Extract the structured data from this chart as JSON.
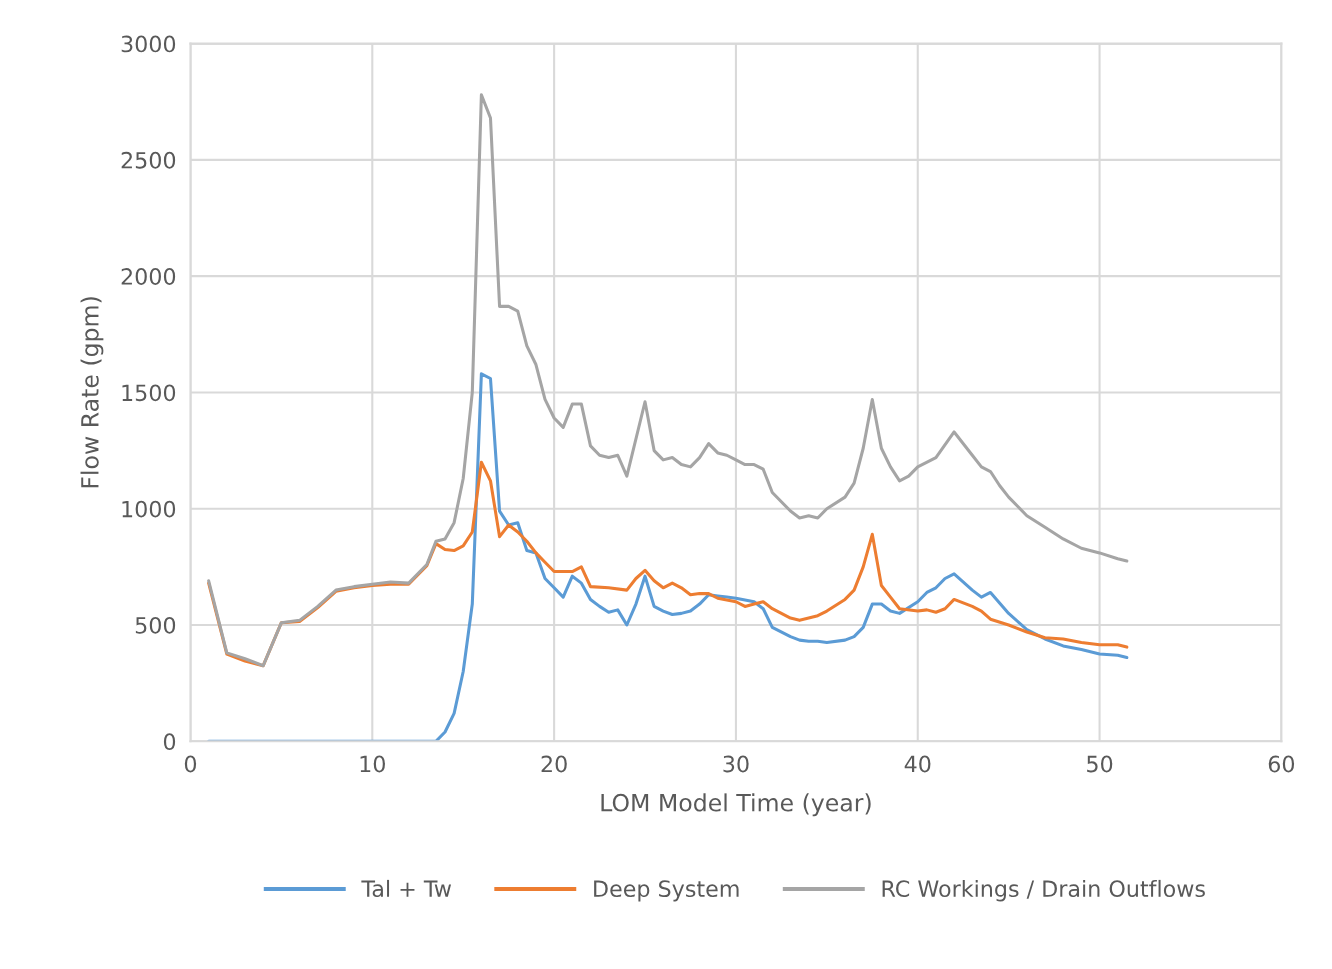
{
  "chart_data": {
    "type": "line",
    "xlabel": "LOM Model Time (year)",
    "ylabel": "Flow Rate (gpm)",
    "xlim": [
      0,
      60
    ],
    "xticks": [
      0,
      10,
      20,
      30,
      40,
      50,
      60
    ],
    "ylim": [
      0,
      3000
    ],
    "yticks": [
      0,
      500,
      1000,
      1500,
      2000,
      2500,
      3000
    ],
    "grid": true,
    "legend": "bottom",
    "marker": "none",
    "line_style": "solid",
    "series": [
      {
        "name": "Tal + Tw",
        "color": "#5b9bd5",
        "x": [
          1,
          13.5,
          14,
          14.5,
          15,
          15.5,
          16,
          16.5,
          17,
          17.5,
          18,
          18.5,
          19,
          19.5,
          20,
          20.5,
          21,
          21.5,
          22,
          22.5,
          23,
          23.5,
          24,
          24.5,
          25,
          25.5,
          26,
          26.5,
          27,
          27.5,
          28,
          28.5,
          29,
          29.5,
          30,
          31,
          31.5,
          32,
          33,
          33.5,
          34,
          34.5,
          35,
          36,
          36.5,
          37,
          37.5,
          38,
          38.5,
          39,
          40,
          40.5,
          41,
          41.5,
          42,
          43,
          43.5,
          44,
          45,
          46,
          47,
          48,
          49,
          50,
          51,
          51.5
        ],
        "values": [
          0,
          0,
          40,
          120,
          300,
          590,
          1580,
          1560,
          990,
          930,
          940,
          820,
          810,
          700,
          660,
          620,
          710,
          680,
          610,
          580,
          555,
          565,
          500,
          590,
          710,
          580,
          560,
          545,
          550,
          560,
          590,
          630,
          625,
          620,
          615,
          600,
          570,
          490,
          450,
          435,
          430,
          430,
          425,
          435,
          450,
          490,
          590,
          590,
          560,
          550,
          600,
          640,
          660,
          700,
          720,
          650,
          620,
          640,
          550,
          480,
          440,
          410,
          395,
          375,
          370,
          360
        ]
      },
      {
        "name": "Deep System",
        "color": "#ed7d31",
        "x": [
          1,
          2,
          3,
          4,
          5,
          6,
          7,
          8,
          9,
          10,
          11,
          12,
          13,
          13.5,
          14,
          14.5,
          15,
          15.5,
          16,
          16.5,
          17,
          17.5,
          18,
          18.5,
          19,
          19.5,
          20,
          21,
          21.5,
          22,
          23,
          24,
          24.5,
          25,
          25.5,
          26,
          26.5,
          27,
          27.5,
          28,
          28.5,
          29,
          30,
          30.5,
          31,
          31.5,
          32,
          33,
          33.5,
          34,
          34.5,
          35,
          36,
          36.5,
          37,
          37.5,
          38,
          38.5,
          39,
          40,
          40.5,
          41,
          41.5,
          42,
          43,
          43.5,
          44,
          45,
          46,
          47,
          48,
          49,
          50,
          51,
          51.5
        ],
        "values": [
          680,
          375,
          345,
          325,
          510,
          515,
          575,
          645,
          660,
          670,
          675,
          675,
          755,
          850,
          825,
          820,
          840,
          900,
          1200,
          1120,
          880,
          930,
          900,
          860,
          810,
          770,
          730,
          730,
          750,
          665,
          660,
          650,
          700,
          735,
          690,
          660,
          680,
          660,
          630,
          635,
          635,
          615,
          600,
          580,
          590,
          600,
          570,
          530,
          520,
          530,
          540,
          560,
          610,
          650,
          750,
          890,
          670,
          620,
          570,
          560,
          565,
          555,
          570,
          610,
          580,
          560,
          525,
          500,
          470,
          445,
          440,
          425,
          415,
          415,
          405
        ]
      },
      {
        "name": "RC Workings / Drain Outflows",
        "color": "#a5a5a5",
        "x": [
          1,
          2,
          3,
          4,
          5,
          6,
          7,
          8,
          9,
          10,
          11,
          12,
          13,
          13.5,
          14,
          14.5,
          15,
          15.5,
          16,
          16.5,
          17,
          17.5,
          18,
          18.5,
          19,
          19.5,
          20,
          20.5,
          21,
          21.5,
          22,
          22.5,
          23,
          23.5,
          24,
          25,
          25.5,
          26,
          26.5,
          27,
          27.5,
          28,
          28.5,
          29,
          29.5,
          30,
          30.5,
          31,
          31.5,
          32,
          33,
          33.5,
          34,
          34.5,
          35,
          36,
          36.5,
          37,
          37.5,
          38,
          38.5,
          39,
          39.5,
          40,
          41,
          42,
          43,
          43.5,
          44,
          44.5,
          45,
          46,
          47,
          48,
          49,
          50,
          51,
          51.5
        ],
        "values": [
          690,
          380,
          355,
          325,
          510,
          520,
          580,
          650,
          665,
          675,
          685,
          680,
          760,
          860,
          870,
          940,
          1130,
          1500,
          2780,
          2680,
          1870,
          1870,
          1850,
          1700,
          1620,
          1470,
          1390,
          1350,
          1450,
          1450,
          1270,
          1230,
          1220,
          1230,
          1140,
          1460,
          1250,
          1210,
          1220,
          1190,
          1180,
          1220,
          1280,
          1240,
          1230,
          1210,
          1190,
          1190,
          1170,
          1070,
          990,
          960,
          970,
          960,
          1000,
          1050,
          1110,
          1260,
          1470,
          1260,
          1180,
          1120,
          1140,
          1180,
          1220,
          1330,
          1230,
          1180,
          1160,
          1100,
          1050,
          970,
          920,
          870,
          830,
          810,
          785,
          775
        ]
      }
    ]
  }
}
